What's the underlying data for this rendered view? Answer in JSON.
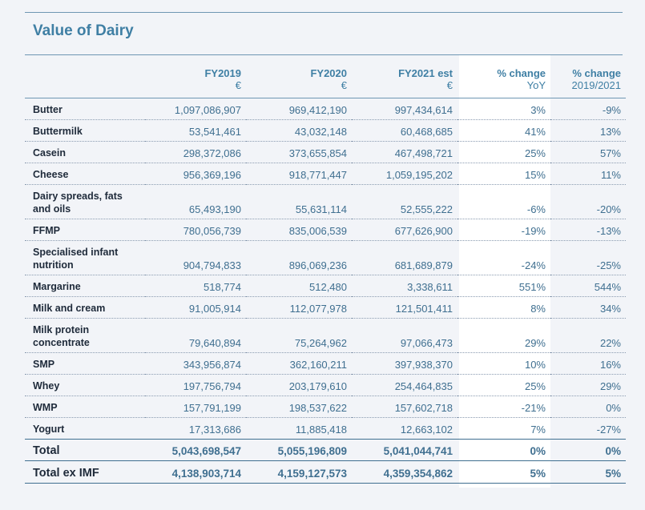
{
  "title": "Value of Dairy",
  "columns": [
    {
      "label": "FY2019",
      "sub": "€"
    },
    {
      "label": "FY2020",
      "sub": "€"
    },
    {
      "label": "FY2021 est",
      "sub": "€"
    },
    {
      "label": "% change",
      "sub": "YoY"
    },
    {
      "label": "% change",
      "sub": "2019/2021"
    }
  ],
  "rows": [
    {
      "label": "Butter",
      "fy2019": "1,097,086,907",
      "fy2020": "969,412,190",
      "fy2021": "997,434,614",
      "yoy": "3%",
      "chg1921": "-9%"
    },
    {
      "label": "Buttermilk",
      "fy2019": "53,541,461",
      "fy2020": "43,032,148",
      "fy2021": "60,468,685",
      "yoy": "41%",
      "chg1921": "13%"
    },
    {
      "label": "Casein",
      "fy2019": "298,372,086",
      "fy2020": "373,655,854",
      "fy2021": "467,498,721",
      "yoy": "25%",
      "chg1921": "57%"
    },
    {
      "label": "Cheese",
      "fy2019": "956,369,196",
      "fy2020": "918,771,447",
      "fy2021": "1,059,195,202",
      "yoy": "15%",
      "chg1921": "11%"
    },
    {
      "label": "Dairy spreads, fats and oils",
      "fy2019": "65,493,190",
      "fy2020": "55,631,114",
      "fy2021": "52,555,222",
      "yoy": "-6%",
      "chg1921": "-20%"
    },
    {
      "label": "FFMP",
      "fy2019": "780,056,739",
      "fy2020": "835,006,539",
      "fy2021": "677,626,900",
      "yoy": "-19%",
      "chg1921": "-13%"
    },
    {
      "label": "Specialised infant nutrition",
      "fy2019": "904,794,833",
      "fy2020": "896,069,236",
      "fy2021": "681,689,879",
      "yoy": "-24%",
      "chg1921": "-25%"
    },
    {
      "label": "Margarine",
      "fy2019": "518,774",
      "fy2020": "512,480",
      "fy2021": "3,338,611",
      "yoy": "551%",
      "chg1921": "544%"
    },
    {
      "label": "Milk and cream",
      "fy2019": "91,005,914",
      "fy2020": "112,077,978",
      "fy2021": "121,501,411",
      "yoy": "8%",
      "chg1921": "34%"
    },
    {
      "label": "Milk protein concentrate",
      "fy2019": "79,640,894",
      "fy2020": "75,264,962",
      "fy2021": "97,066,473",
      "yoy": "29%",
      "chg1921": "22%"
    },
    {
      "label": "SMP",
      "fy2019": "343,956,874",
      "fy2020": "362,160,211",
      "fy2021": "397,938,370",
      "yoy": "10%",
      "chg1921": "16%"
    },
    {
      "label": "Whey",
      "fy2019": "197,756,794",
      "fy2020": "203,179,610",
      "fy2021": "254,464,835",
      "yoy": "25%",
      "chg1921": "29%"
    },
    {
      "label": "WMP",
      "fy2019": "157,791,199",
      "fy2020": "198,537,622",
      "fy2021": "157,602,718",
      "yoy": "-21%",
      "chg1921": "0%"
    },
    {
      "label": "Yogurt",
      "fy2019": "17,313,686",
      "fy2020": "11,885,418",
      "fy2021": "12,663,102",
      "yoy": "7%",
      "chg1921": "-27%"
    }
  ],
  "totals": [
    {
      "label": "Total",
      "fy2019": "5,043,698,547",
      "fy2020": "5,055,196,809",
      "fy2021": "5,041,044,741",
      "yoy": "0%",
      "chg1921": "0%"
    },
    {
      "label": "Total ex IMF",
      "fy2019": "4,138,903,714",
      "fy2020": "4,159,127,573",
      "fy2021": "4,359,354,862",
      "yoy": "5%",
      "chg1921": "5%"
    }
  ]
}
